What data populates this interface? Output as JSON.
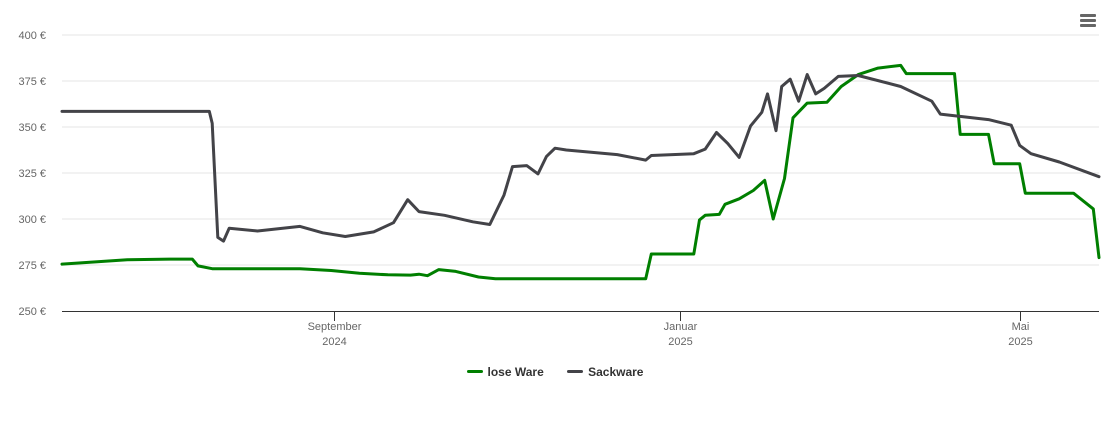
{
  "chart_data": {
    "type": "line",
    "ylim": [
      250,
      400
    ],
    "y_ticks": [
      {
        "value": 250,
        "label": "250 €"
      },
      {
        "value": 275,
        "label": "275 €"
      },
      {
        "value": 300,
        "label": "300 €"
      },
      {
        "value": 325,
        "label": "325 €"
      },
      {
        "value": 350,
        "label": "350 €"
      },
      {
        "value": 375,
        "label": "375 €"
      },
      {
        "value": 400,
        "label": "400 €"
      }
    ],
    "x_range": [
      "2024-05-28",
      "2025-05-29"
    ],
    "x_ticks": [
      {
        "date": "2024-09-01",
        "month": "September",
        "year": "2024"
      },
      {
        "date": "2025-01-01",
        "month": "Januar",
        "year": "2025"
      },
      {
        "date": "2025-05-01",
        "month": "Mai",
        "year": "2025"
      }
    ],
    "grid": true,
    "legend_position": "bottom-center",
    "series": [
      {
        "name": "lose Ware",
        "color": "#007f00",
        "points": [
          [
            "2024-05-28",
            275.5
          ],
          [
            "2024-06-20",
            277.8
          ],
          [
            "2024-07-05",
            278.2
          ],
          [
            "2024-07-13",
            278.2
          ],
          [
            "2024-07-15",
            274.5
          ],
          [
            "2024-07-20",
            273.0
          ],
          [
            "2024-08-10",
            273.0
          ],
          [
            "2024-08-20",
            273.0
          ],
          [
            "2024-08-31",
            272.0
          ],
          [
            "2024-09-10",
            270.5
          ],
          [
            "2024-09-20",
            269.7
          ],
          [
            "2024-09-28",
            269.5
          ],
          [
            "2024-10-01",
            270.0
          ],
          [
            "2024-10-04",
            269.2
          ],
          [
            "2024-10-08",
            272.5
          ],
          [
            "2024-10-14",
            271.5
          ],
          [
            "2024-10-22",
            268.5
          ],
          [
            "2024-10-28",
            267.5
          ],
          [
            "2024-11-20",
            267.5
          ],
          [
            "2024-12-20",
            267.5
          ],
          [
            "2024-12-22",
            281.0
          ],
          [
            "2025-01-06",
            281.0
          ],
          [
            "2025-01-08",
            299.5
          ],
          [
            "2025-01-10",
            302.0
          ],
          [
            "2025-01-15",
            302.5
          ],
          [
            "2025-01-17",
            308.0
          ],
          [
            "2025-01-22",
            311.0
          ],
          [
            "2025-01-27",
            315.5
          ],
          [
            "2025-01-31",
            321.0
          ],
          [
            "2025-02-03",
            300.0
          ],
          [
            "2025-02-07",
            322.0
          ],
          [
            "2025-02-10",
            355.0
          ],
          [
            "2025-02-15",
            363.0
          ],
          [
            "2025-02-22",
            363.5
          ],
          [
            "2025-02-27",
            372.0
          ],
          [
            "2025-03-05",
            378.5
          ],
          [
            "2025-03-12",
            382.0
          ],
          [
            "2025-03-20",
            383.5
          ],
          [
            "2025-03-22",
            379.0
          ],
          [
            "2025-04-08",
            379.0
          ],
          [
            "2025-04-10",
            346.0
          ],
          [
            "2025-04-20",
            346.0
          ],
          [
            "2025-04-22",
            330.0
          ],
          [
            "2025-04-30",
            330.0
          ],
          [
            "2025-05-01",
            330.0
          ],
          [
            "2025-05-03",
            314.0
          ],
          [
            "2025-05-20",
            314.0
          ],
          [
            "2025-05-27",
            305.5
          ],
          [
            "2025-05-29",
            279.0
          ]
        ]
      },
      {
        "name": "Sackware",
        "color": "#434348",
        "points": [
          [
            "2024-05-28",
            358.5
          ],
          [
            "2024-07-13",
            358.5
          ],
          [
            "2024-07-19",
            358.5
          ],
          [
            "2024-07-20",
            352.0
          ],
          [
            "2024-07-22",
            290.0
          ],
          [
            "2024-07-24",
            288.0
          ],
          [
            "2024-07-26",
            295.0
          ],
          [
            "2024-08-05",
            293.5
          ],
          [
            "2024-08-20",
            296.0
          ],
          [
            "2024-08-28",
            292.5
          ],
          [
            "2024-09-05",
            290.5
          ],
          [
            "2024-09-15",
            293.0
          ],
          [
            "2024-09-22",
            298.0
          ],
          [
            "2024-09-27",
            310.5
          ],
          [
            "2024-10-01",
            304.0
          ],
          [
            "2024-10-10",
            302.0
          ],
          [
            "2024-10-20",
            298.5
          ],
          [
            "2024-10-26",
            297.0
          ],
          [
            "2024-10-31",
            313.0
          ],
          [
            "2024-11-03",
            328.5
          ],
          [
            "2024-11-08",
            329.0
          ],
          [
            "2024-11-12",
            324.5
          ],
          [
            "2024-11-15",
            334.0
          ],
          [
            "2024-11-18",
            338.5
          ],
          [
            "2024-11-22",
            337.5
          ],
          [
            "2024-12-10",
            335.0
          ],
          [
            "2024-12-20",
            332.0
          ],
          [
            "2024-12-22",
            334.5
          ],
          [
            "2025-01-06",
            335.5
          ],
          [
            "2025-01-10",
            338.0
          ],
          [
            "2025-01-14",
            347.0
          ],
          [
            "2025-01-18",
            341.0
          ],
          [
            "2025-01-22",
            333.5
          ],
          [
            "2025-01-26",
            350.5
          ],
          [
            "2025-01-30",
            358.0
          ],
          [
            "2025-02-01",
            368.0
          ],
          [
            "2025-02-04",
            348.0
          ],
          [
            "2025-02-06",
            372.0
          ],
          [
            "2025-02-09",
            376.0
          ],
          [
            "2025-02-12",
            364.0
          ],
          [
            "2025-02-15",
            378.5
          ],
          [
            "2025-02-18",
            368.0
          ],
          [
            "2025-02-21",
            371.0
          ],
          [
            "2025-02-26",
            377.5
          ],
          [
            "2025-03-05",
            378.0
          ],
          [
            "2025-03-20",
            372.0
          ],
          [
            "2025-03-31",
            364.0
          ],
          [
            "2025-04-03",
            357.0
          ],
          [
            "2025-04-20",
            354.0
          ],
          [
            "2025-04-28",
            351.0
          ],
          [
            "2025-05-01",
            340.0
          ],
          [
            "2025-05-05",
            335.5
          ],
          [
            "2025-05-15",
            331.0
          ],
          [
            "2025-05-29",
            323.0
          ]
        ]
      }
    ]
  },
  "legend": {
    "items": [
      {
        "label": "lose Ware",
        "color": "#007f00"
      },
      {
        "label": "Sackware",
        "color": "#434348"
      }
    ]
  },
  "toolbar": {
    "menu_icon": "hamburger-menu-icon"
  }
}
